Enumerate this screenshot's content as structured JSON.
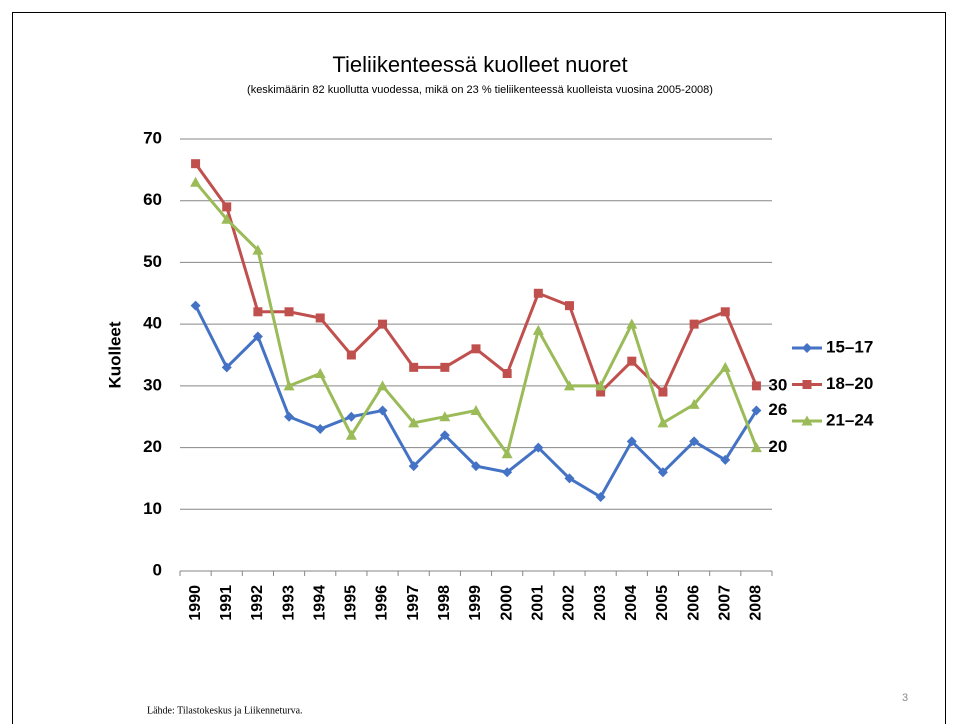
{
  "chart_data": {
    "type": "line",
    "title": "Tieliikenteessä kuolleet nuoret",
    "subtitle": "(keskimäärin 82 kuollutta vuodessa, mikä on 23 % tieliikenteessä kuolleista vuosina 2005-2008)",
    "y_label": "Kuolleet",
    "categories": [
      "1990",
      "1991",
      "1992",
      "1993",
      "1994",
      "1995",
      "1996",
      "1997",
      "1998",
      "1999",
      "2000",
      "2001",
      "2002",
      "2003",
      "2004",
      "2005",
      "2006",
      "2007",
      "2008"
    ],
    "series": [
      {
        "name": "15–17",
        "color": "#4472c4",
        "marker": "diamond",
        "values": [
          43,
          33,
          38,
          25,
          23,
          25,
          26,
          17,
          22,
          17,
          16,
          20,
          15,
          12,
          21,
          16,
          21,
          18,
          26
        ]
      },
      {
        "name": "18–20",
        "color": "#c0504d",
        "marker": "square",
        "values": [
          66,
          59,
          42,
          42,
          41,
          35,
          40,
          33,
          33,
          36,
          32,
          45,
          43,
          29,
          34,
          29,
          40,
          42,
          30
        ]
      },
      {
        "name": "21–24",
        "color": "#9bbb59",
        "marker": "triangle",
        "values": [
          63,
          57,
          52,
          30,
          32,
          22,
          30,
          24,
          25,
          26,
          19,
          39,
          30,
          30,
          40,
          24,
          27,
          33,
          20
        ]
      }
    ],
    "ylim": [
      0,
      70
    ],
    "yticks": [
      0,
      10,
      20,
      30,
      40,
      50,
      60,
      70
    ],
    "grid": true,
    "legend": "right",
    "source": "Lähde: Tilastokeskus ja Liikenneturva.",
    "page_number": "3"
  }
}
